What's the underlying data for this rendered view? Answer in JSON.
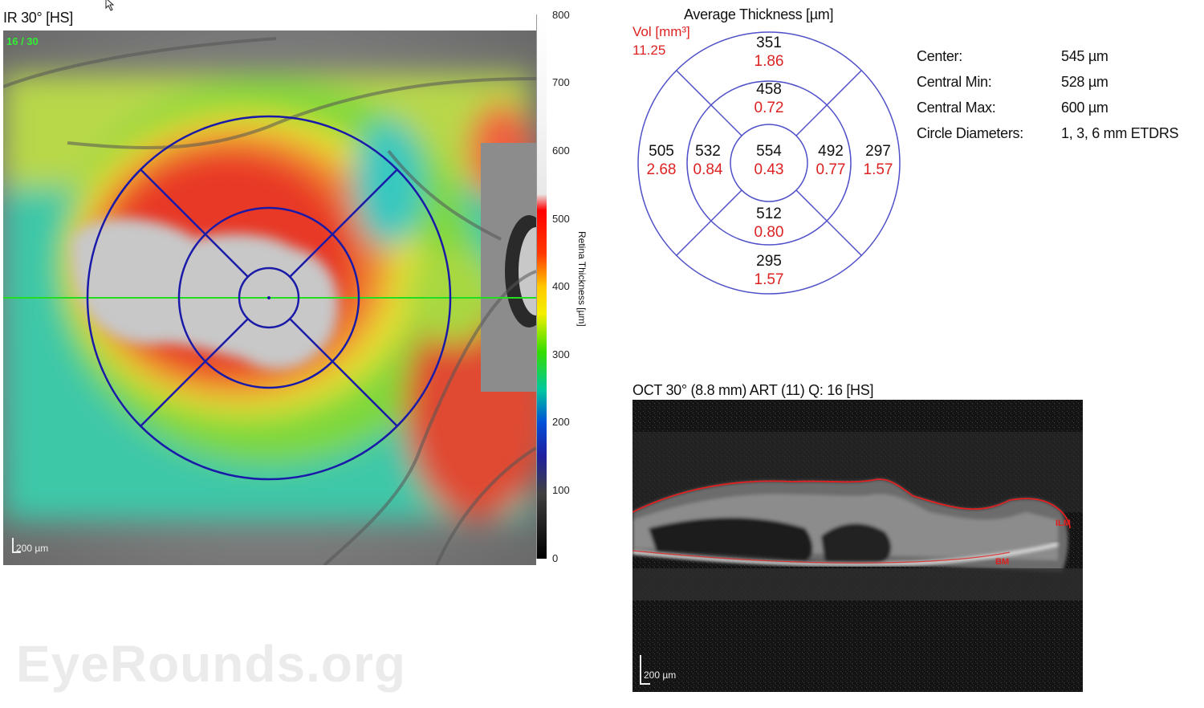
{
  "ir": {
    "title": "IR 30° [HS]",
    "overlay_label": "16 / 30",
    "scale_label": "200 µm"
  },
  "colorbar": {
    "ticks": [
      "800",
      "700",
      "600",
      "500",
      "400",
      "300",
      "200",
      "100",
      "0"
    ],
    "axis_title": "Retina Thickness [µm]"
  },
  "etdrs": {
    "title": "Average Thickness [µm]",
    "vol_label": "Vol [mm³]",
    "vol_value": "11.25",
    "center": {
      "thickness": "554",
      "volume": "0.43"
    },
    "inner_superior": {
      "thickness": "458",
      "volume": "0.72"
    },
    "inner_inferior": {
      "thickness": "512",
      "volume": "0.80"
    },
    "inner_temporal": {
      "thickness": "532",
      "volume": "0.84"
    },
    "inner_nasal": {
      "thickness": "492",
      "volume": "0.77"
    },
    "outer_superior": {
      "thickness": "351",
      "volume": "1.86"
    },
    "outer_inferior": {
      "thickness": "295",
      "volume": "1.57"
    },
    "outer_temporal": {
      "thickness": "505",
      "volume": "2.68"
    },
    "outer_nasal": {
      "thickness": "297",
      "volume": "1.57"
    }
  },
  "stats": {
    "center_label": "Center:",
    "center_value": "545 µm",
    "min_label": "Central Min:",
    "min_value": "528 µm",
    "max_label": "Central Max:",
    "max_value": "600 µm",
    "diam_label": "Circle Diameters:",
    "diam_value": "1, 3, 6 mm ETDRS"
  },
  "oct": {
    "title": "OCT 30° (8.8 mm) ART (11) Q: 16 [HS]",
    "ilm_label": "ILM",
    "bm_label": "BM",
    "scale_label": "200 µm"
  },
  "watermark": "EyeRounds.org",
  "colors": {
    "grid": "#1a1aa8",
    "scan_line": "#22dd22",
    "volume_text": "#dd2222",
    "ilm_line": "#e02020"
  }
}
